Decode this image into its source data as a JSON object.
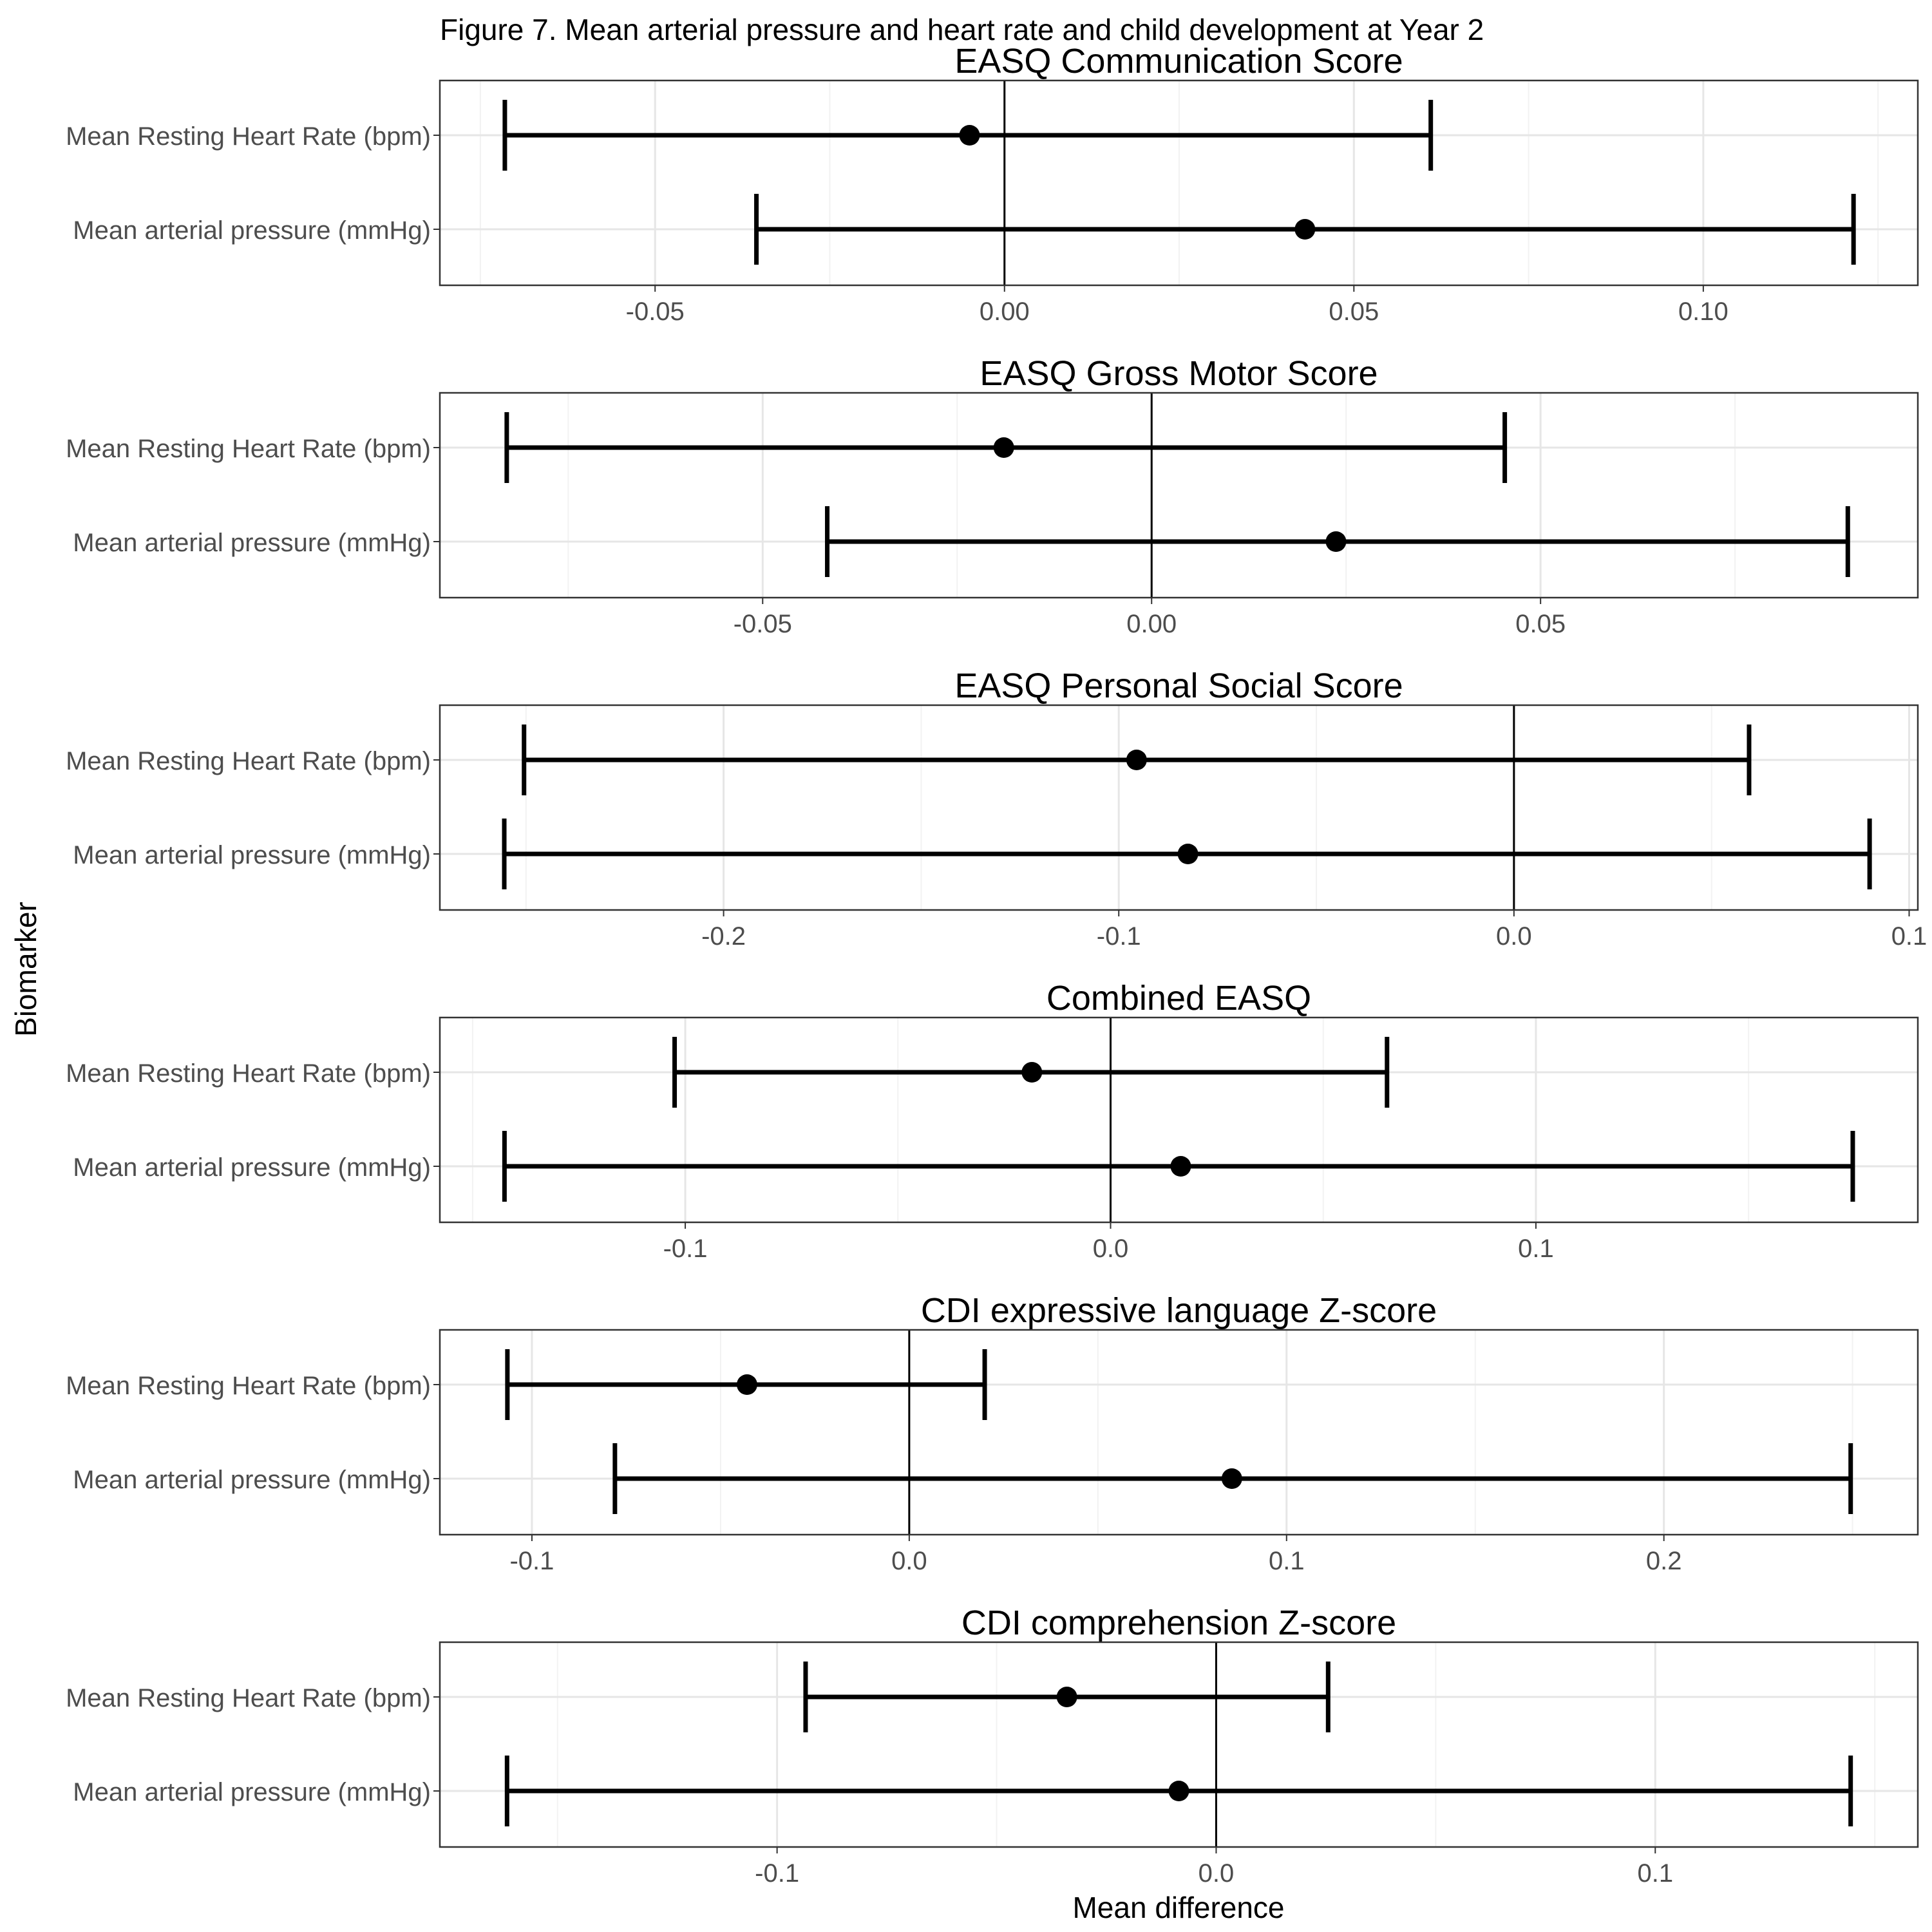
{
  "figure": {
    "title": "Figure 7. Mean arterial pressure and heart rate and child development at Year 2",
    "ylabel": "Biomarker",
    "xlabel": "Mean difference"
  },
  "style": {
    "panel_border": "#333333",
    "grid_major": "#e6e6e6",
    "grid_minor": "#f2f2f2",
    "mark": "#000000",
    "tick_text": "#4d4d4d",
    "title_text": "#000000"
  },
  "chart_data": [
    {
      "type": "forest",
      "title": "EASQ Communication Score",
      "categories": [
        "Mean Resting Heart Rate (bpm)",
        "Mean arterial pressure (mmHg)"
      ],
      "estimate": [
        -0.005,
        0.043
      ],
      "lower": [
        -0.0715,
        -0.0355
      ],
      "upper": [
        0.061,
        0.1215
      ],
      "xlim": [
        -0.0808,
        0.1307
      ],
      "ticks": [
        -0.05,
        0.0,
        0.05,
        0.1
      ],
      "tick_labels": [
        "-0.05",
        "0.00",
        "0.05",
        "0.10"
      ],
      "minor_ticks": [
        -0.075,
        -0.025,
        0.025,
        0.075,
        0.125
      ],
      "ref_line": 0,
      "grid": true
    },
    {
      "type": "forest",
      "title": "EASQ Gross Motor Score",
      "categories": [
        "Mean Resting Heart Rate (bpm)",
        "Mean arterial pressure (mmHg)"
      ],
      "estimate": [
        -0.019,
        0.0237
      ],
      "lower": [
        -0.0829,
        -0.0417
      ],
      "upper": [
        0.0454,
        0.0895
      ],
      "xlim": [
        -0.0915,
        0.0985
      ],
      "ticks": [
        -0.05,
        0.0,
        0.05
      ],
      "tick_labels": [
        "-0.05",
        "0.00",
        "0.05"
      ],
      "minor_ticks": [
        -0.075,
        -0.025,
        0.025,
        0.075
      ],
      "ref_line": 0,
      "grid": true
    },
    {
      "type": "forest",
      "title": "EASQ Personal Social Score",
      "categories": [
        "Mean Resting Heart Rate (bpm)",
        "Mean arterial pressure (mmHg)"
      ],
      "estimate": [
        -0.0955,
        -0.0825
      ],
      "lower": [
        -0.2505,
        -0.2555
      ],
      "upper": [
        0.0595,
        0.09
      ],
      "xlim": [
        -0.2718,
        0.1022
      ],
      "ticks": [
        -0.2,
        -0.1,
        0.0,
        0.1
      ],
      "tick_labels": [
        "-0.2",
        "-0.1",
        "0.0",
        "0.1"
      ],
      "minor_ticks": [
        -0.25,
        -0.15,
        -0.05,
        0.05
      ],
      "ref_line": 0,
      "grid": true
    },
    {
      "type": "forest",
      "title": "Combined EASQ",
      "categories": [
        "Mean Resting Heart Rate (bpm)",
        "Mean arterial pressure (mmHg)"
      ],
      "estimate": [
        -0.0185,
        0.0165
      ],
      "lower": [
        -0.1025,
        -0.1425
      ],
      "upper": [
        0.065,
        0.1745
      ],
      "xlim": [
        -0.1577,
        0.1898
      ],
      "ticks": [
        -0.1,
        0.0,
        0.1
      ],
      "tick_labels": [
        "-0.1",
        "0.0",
        "0.1"
      ],
      "minor_ticks": [
        -0.15,
        -0.05,
        0.05,
        0.15
      ],
      "ref_line": 0,
      "grid": true
    },
    {
      "type": "forest",
      "title": "CDI expressive language Z-score",
      "categories": [
        "Mean Resting Heart Rate (bpm)",
        "Mean arterial pressure (mmHg)"
      ],
      "estimate": [
        -0.043,
        0.0855
      ],
      "lower": [
        -0.1065,
        -0.078
      ],
      "upper": [
        0.02,
        0.2495
      ],
      "xlim": [
        -0.1244,
        0.2673
      ],
      "ticks": [
        -0.1,
        0.0,
        0.1,
        0.2
      ],
      "tick_labels": [
        "-0.1",
        "0.0",
        "0.1",
        "0.2"
      ],
      "minor_ticks": [
        -0.05,
        0.05,
        0.15,
        0.25
      ],
      "ref_line": 0,
      "grid": true
    },
    {
      "type": "forest",
      "title": "CDI comprehension Z-score",
      "categories": [
        "Mean Resting Heart Rate (bpm)",
        "Mean arterial pressure (mmHg)"
      ],
      "estimate": [
        -0.034,
        -0.0085
      ],
      "lower": [
        -0.0935,
        -0.1615
      ],
      "upper": [
        0.0255,
        0.1445
      ],
      "xlim": [
        -0.1768,
        0.1598
      ],
      "ticks": [
        -0.1,
        0.0,
        0.1
      ],
      "tick_labels": [
        "-0.1",
        "0.0",
        "0.1"
      ],
      "minor_ticks": [
        -0.15,
        -0.05,
        0.05,
        0.15
      ],
      "ref_line": 0,
      "grid": true
    }
  ]
}
